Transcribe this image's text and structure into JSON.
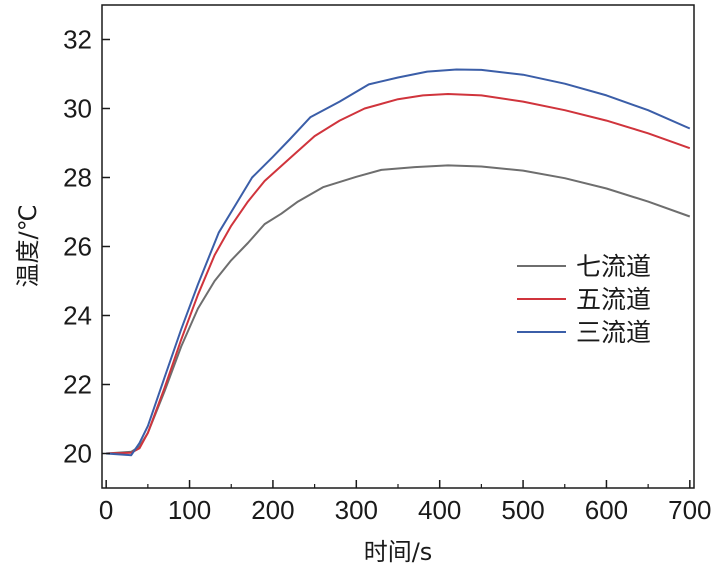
{
  "chart_data": {
    "type": "line",
    "title": "",
    "xlabel": "时间/s",
    "ylabel": "温度/℃",
    "xlim": [
      -5,
      705
    ],
    "ylim": [
      19,
      33
    ],
    "xticks": [
      0,
      100,
      200,
      300,
      400,
      500,
      600,
      700
    ],
    "yticks": [
      20,
      22,
      24,
      26,
      28,
      30,
      32
    ],
    "grid": false,
    "legend": "right",
    "series": [
      {
        "name": "七流道",
        "color": "#6e6e6e",
        "points": [
          [
            0,
            20
          ],
          [
            30,
            20.05
          ],
          [
            40,
            20.2
          ],
          [
            50,
            20.6
          ],
          [
            70,
            21.8
          ],
          [
            90,
            23.1
          ],
          [
            110,
            24.2
          ],
          [
            130,
            25
          ],
          [
            150,
            25.6
          ],
          [
            170,
            26.1
          ],
          [
            190,
            26.65
          ],
          [
            210,
            26.95
          ],
          [
            230,
            27.3
          ],
          [
            260,
            27.72
          ],
          [
            300,
            28.02
          ],
          [
            330,
            28.22
          ],
          [
            370,
            28.3
          ],
          [
            410,
            28.35
          ],
          [
            450,
            28.32
          ],
          [
            500,
            28.2
          ],
          [
            550,
            27.98
          ],
          [
            600,
            27.68
          ],
          [
            650,
            27.3
          ],
          [
            700,
            26.87
          ]
        ]
      },
      {
        "name": "五流道",
        "color": "#d0343c",
        "points": [
          [
            0,
            20
          ],
          [
            30,
            20.02
          ],
          [
            40,
            20.15
          ],
          [
            50,
            20.6
          ],
          [
            70,
            21.9
          ],
          [
            90,
            23.3
          ],
          [
            110,
            24.6
          ],
          [
            130,
            25.75
          ],
          [
            150,
            26.6
          ],
          [
            170,
            27.3
          ],
          [
            190,
            27.9
          ],
          [
            220,
            28.55
          ],
          [
            250,
            29.2
          ],
          [
            280,
            29.65
          ],
          [
            310,
            30
          ],
          [
            350,
            30.27
          ],
          [
            380,
            30.38
          ],
          [
            410,
            30.42
          ],
          [
            450,
            30.38
          ],
          [
            500,
            30.2
          ],
          [
            550,
            29.95
          ],
          [
            600,
            29.65
          ],
          [
            650,
            29.28
          ],
          [
            700,
            28.85
          ]
        ]
      },
      {
        "name": "三流道",
        "color": "#3b5ea8",
        "points": [
          [
            0,
            20
          ],
          [
            30,
            19.95
          ],
          [
            40,
            20.3
          ],
          [
            50,
            20.8
          ],
          [
            70,
            22.2
          ],
          [
            90,
            23.6
          ],
          [
            110,
            24.9
          ],
          [
            135,
            26.4
          ],
          [
            155,
            27.2
          ],
          [
            175,
            28
          ],
          [
            200,
            28.6
          ],
          [
            220,
            29.1
          ],
          [
            245,
            29.75
          ],
          [
            280,
            30.2
          ],
          [
            315,
            30.7
          ],
          [
            350,
            30.9
          ],
          [
            385,
            31.07
          ],
          [
            420,
            31.13
          ],
          [
            450,
            31.12
          ],
          [
            500,
            30.98
          ],
          [
            550,
            30.72
          ],
          [
            600,
            30.38
          ],
          [
            650,
            29.95
          ],
          [
            700,
            29.42
          ]
        ]
      }
    ]
  }
}
